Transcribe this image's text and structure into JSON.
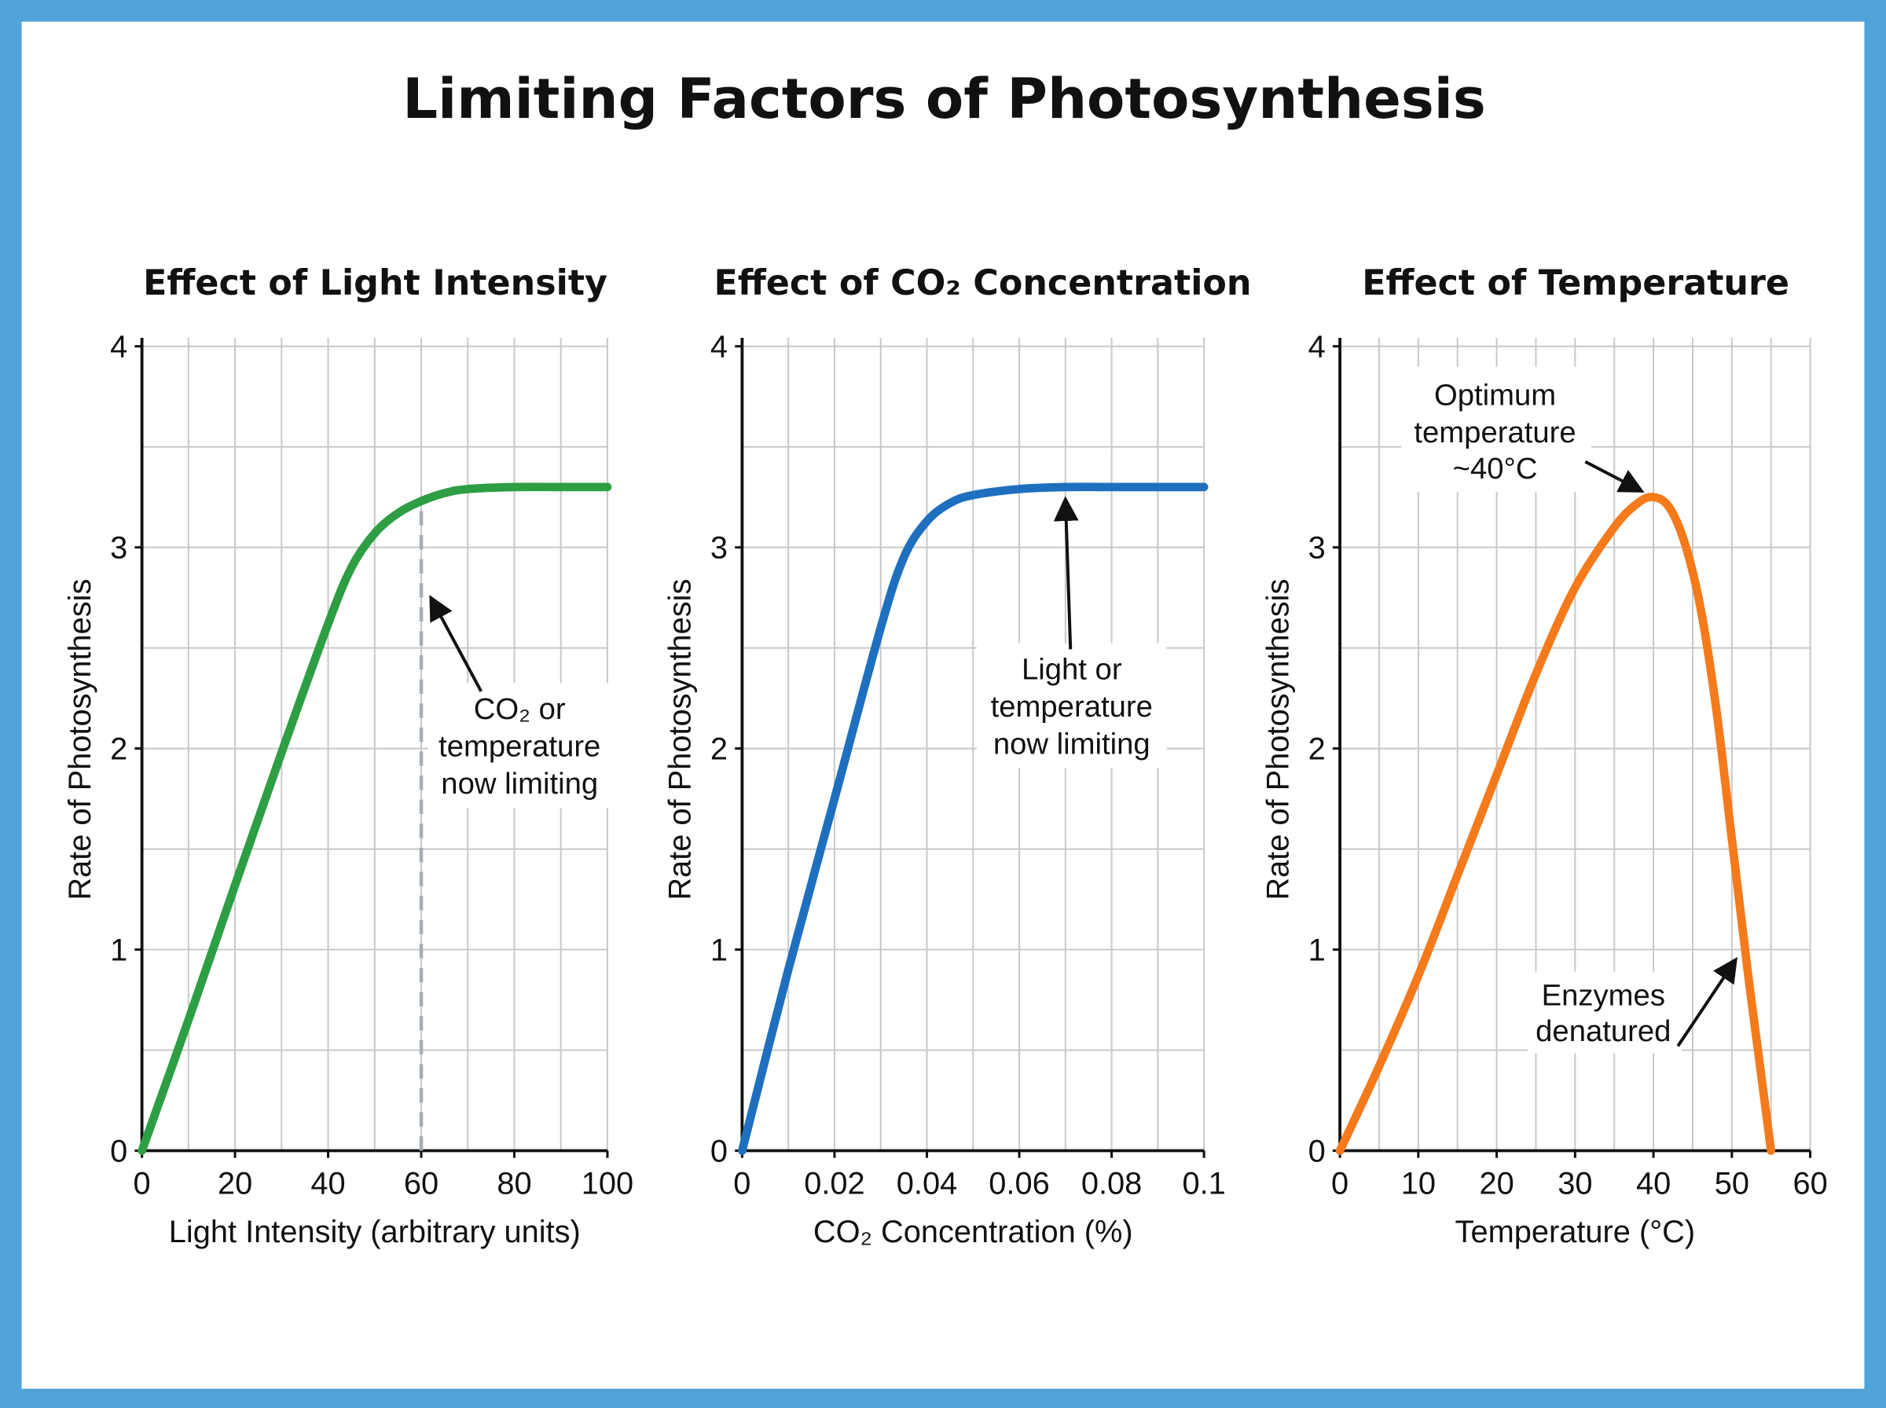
{
  "title": "Limiting Factors of Photosynthesis",
  "colors": {
    "frame": "#4fa3d6",
    "background": "#ffffff",
    "grid": "#c8c8c8",
    "axis": "#111111"
  },
  "chart_data": [
    {
      "type": "line",
      "title": "Effect of Light Intensity",
      "xlabel": "Light Intensity (arbitrary units)",
      "ylabel": "Rate of Photosynthesis",
      "xlim": [
        0,
        100
      ],
      "ylim": [
        0,
        4
      ],
      "xticks": [
        0,
        20,
        40,
        60,
        80,
        100
      ],
      "xtick_labels": [
        "0",
        "20",
        "40",
        "60",
        "80",
        "100"
      ],
      "yticks": [
        0,
        1,
        2,
        3,
        4
      ],
      "grid": true,
      "grid_x_step": 10,
      "grid_y_step": 0.5,
      "color": "#2e9e44",
      "x": [
        0,
        10,
        20,
        30,
        40,
        45,
        50,
        55,
        60,
        65,
        70,
        80,
        90,
        100
      ],
      "y": [
        0,
        0.65,
        1.32,
        1.98,
        2.62,
        2.9,
        3.07,
        3.17,
        3.23,
        3.27,
        3.29,
        3.3,
        3.3,
        3.3
      ],
      "reference_line": {
        "x": 60,
        "style": "dashed",
        "y_to": 3.22
      },
      "annotations": [
        {
          "lines": [
            "CO₂ or",
            "temperature",
            "now limiting"
          ],
          "points_to": [
            60,
            2.75
          ]
        }
      ]
    },
    {
      "type": "line",
      "title": "Effect of CO₂ Concentration",
      "xlabel": "CO₂ Concentration (%)",
      "ylabel": "Rate of Photosynthesis",
      "xlim": [
        0,
        0.1
      ],
      "ylim": [
        0,
        4
      ],
      "xticks": [
        0,
        0.02,
        0.04,
        0.06,
        0.08,
        0.1
      ],
      "xtick_labels": [
        "0",
        "0.02",
        "0.04",
        "0.06",
        "0.08",
        "0.1"
      ],
      "yticks": [
        0,
        1,
        2,
        3,
        4
      ],
      "grid": true,
      "grid_x_step": 0.01,
      "grid_y_step": 0.5,
      "color": "#1f6fbf",
      "x": [
        0,
        0.01,
        0.02,
        0.03,
        0.035,
        0.04,
        0.045,
        0.05,
        0.06,
        0.07,
        0.08,
        0.1
      ],
      "y": [
        0,
        0.9,
        1.75,
        2.6,
        2.95,
        3.13,
        3.22,
        3.26,
        3.29,
        3.3,
        3.3,
        3.3
      ],
      "annotations": [
        {
          "lines": [
            "Light or",
            "temperature",
            "now limiting"
          ],
          "points_to": [
            0.07,
            3.3
          ]
        }
      ]
    },
    {
      "type": "line",
      "title": "Effect of Temperature",
      "xlabel": "Temperature (°C)",
      "ylabel": "Rate of Photosynthesis",
      "xlim": [
        0,
        60
      ],
      "ylim": [
        0,
        4
      ],
      "xticks": [
        0,
        10,
        20,
        30,
        40,
        50,
        60
      ],
      "xtick_labels": [
        "0",
        "10",
        "20",
        "30",
        "40",
        "50",
        "60"
      ],
      "yticks": [
        0,
        1,
        2,
        3,
        4
      ],
      "grid": true,
      "grid_x_step": 5,
      "grid_y_step": 0.5,
      "color": "#f47a1c",
      "x": [
        0,
        5,
        10,
        15,
        20,
        25,
        30,
        35,
        38,
        40,
        42,
        44,
        46,
        48,
        50,
        52,
        54,
        55
      ],
      "y": [
        0,
        0.42,
        0.87,
        1.37,
        1.87,
        2.37,
        2.8,
        3.1,
        3.22,
        3.25,
        3.2,
        3.02,
        2.7,
        2.2,
        1.55,
        0.9,
        0.3,
        0
      ],
      "annotations": [
        {
          "lines": [
            "Optimum",
            "temperature",
            "~40°C"
          ],
          "points_to": [
            38.5,
            3.28
          ]
        },
        {
          "lines": [
            "Enzymes",
            "denatured"
          ],
          "points_to": [
            50.5,
            0.95
          ]
        }
      ]
    }
  ]
}
